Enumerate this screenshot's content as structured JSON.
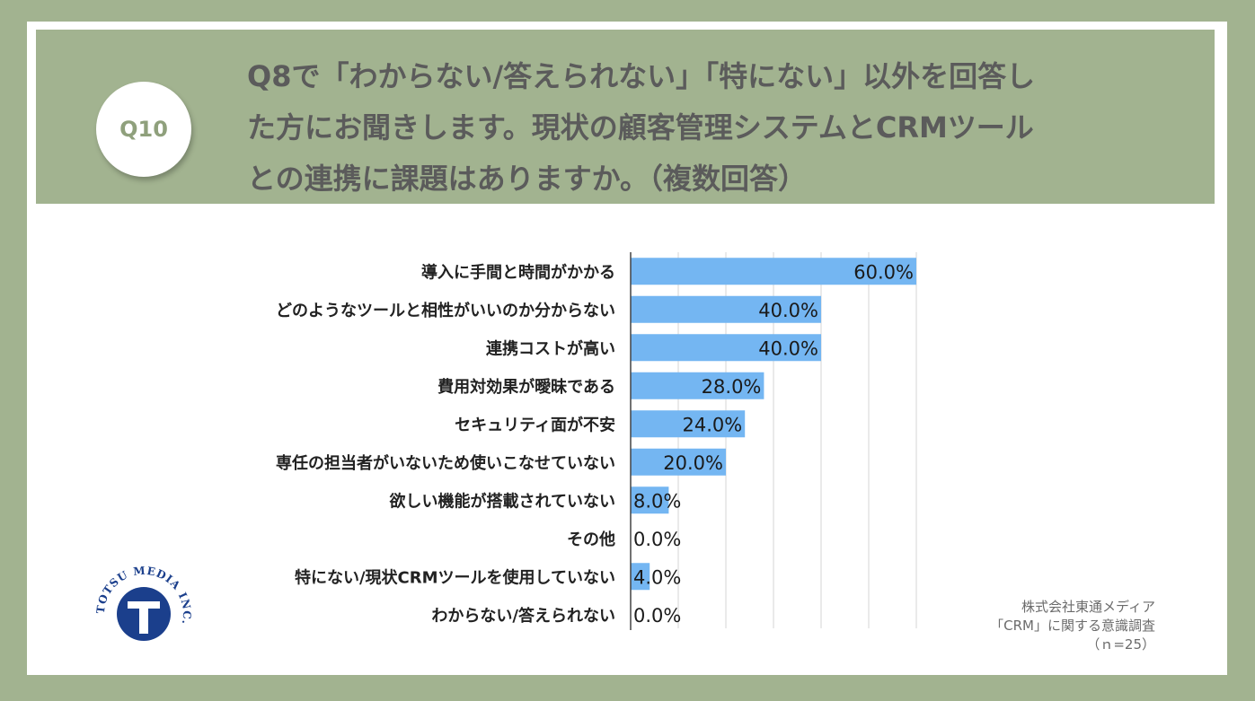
{
  "question": {
    "badge": "Q10",
    "lines": [
      "Q8で「わからない/答えられない」「特にない」以外を回答し",
      "た方にお聞きします。現状の顧客管理システムとCRMツール",
      "との連携に課題はありますか。（複数回答）"
    ]
  },
  "chart_data": {
    "type": "bar",
    "orientation": "horizontal",
    "categories": [
      "導入に手間と時間がかかる",
      "どのようなツールと相性がいいのか分からない",
      "連携コストが高い",
      "費用対効果が曖昧である",
      "セキュリティ面が不安",
      "専任の担当者がいないため使いこなせていない",
      "欲しい機能が搭載されていない",
      "その他",
      "特にない/現状CRMツールを使用していない",
      "わからない/答えられない"
    ],
    "values": [
      60.0,
      40.0,
      40.0,
      28.0,
      24.0,
      20.0,
      8.0,
      0.0,
      4.0,
      0.0
    ],
    "data_labels": [
      "60.0%",
      "40.0%",
      "40.0%",
      "28.0%",
      "24.0%",
      "20.0%",
      "8.0%",
      "0.0%",
      "4.0%",
      "0.0%"
    ],
    "xlim": [
      0,
      60
    ],
    "grid": true,
    "bar_color": "#74b6f2"
  },
  "source": {
    "line1": "株式会社東通メディア",
    "line2": "「CRM」に関する意識調査",
    "line3": "（ｎ=25）"
  },
  "logo": {
    "text": "TOTSU MEDIA INC.",
    "color": "#1b3f8c"
  }
}
